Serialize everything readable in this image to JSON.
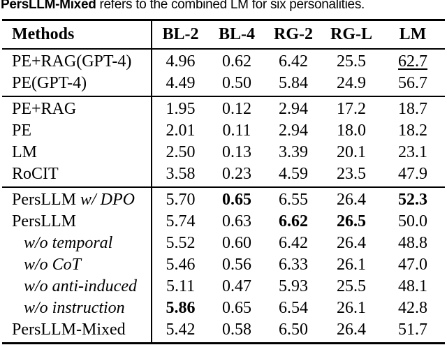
{
  "caption": {
    "bold_part": "PersLLM-Mixed",
    "rest": " refers to the combined LM for six personalities."
  },
  "colors": {
    "text": "#000000",
    "background": "#ffffff"
  },
  "chart_data": {
    "type": "table",
    "title": "PersLLM-Mixed refers to the combined LM for six personalities.",
    "columns": [
      "Methods",
      "BL-2",
      "BL-4",
      "RG-2",
      "RG-L",
      "LM"
    ],
    "sections": [
      {
        "rows": [
          {
            "method": "PE+RAG(GPT-4)",
            "style": "normal",
            "values": [
              "4.96",
              "0.62",
              "6.42",
              "25.5",
              "62.7"
            ],
            "bold": [],
            "underline": [
              4
            ]
          },
          {
            "method": "PE(GPT-4)",
            "style": "normal",
            "values": [
              "4.49",
              "0.50",
              "5.84",
              "24.9",
              "56.7"
            ],
            "bold": [],
            "underline": []
          }
        ]
      },
      {
        "rows": [
          {
            "method": "PE+RAG",
            "style": "normal",
            "values": [
              "1.95",
              "0.12",
              "2.94",
              "17.2",
              "18.7"
            ],
            "bold": [],
            "underline": []
          },
          {
            "method": "PE",
            "style": "normal",
            "values": [
              "2.01",
              "0.11",
              "2.94",
              "18.0",
              "18.2"
            ],
            "bold": [],
            "underline": []
          },
          {
            "method": "LM",
            "style": "normal",
            "values": [
              "2.50",
              "0.13",
              "3.39",
              "20.1",
              "23.1"
            ],
            "bold": [],
            "underline": []
          },
          {
            "method": "RoCIT",
            "style": "normal",
            "values": [
              "3.58",
              "0.23",
              "4.59",
              "23.5",
              "47.9"
            ],
            "bold": [],
            "underline": []
          }
        ]
      },
      {
        "rows": [
          {
            "method": "PersLLM ",
            "method_suffix_italic": "w/ DPO",
            "style": "normal",
            "values": [
              "5.70",
              "0.65",
              "6.55",
              "26.4",
              "52.3"
            ],
            "bold": [
              1,
              4
            ],
            "underline": []
          },
          {
            "method": "PersLLM",
            "style": "normal",
            "values": [
              "5.74",
              "0.63",
              "6.62",
              "26.5",
              "50.0"
            ],
            "bold": [
              2,
              3
            ],
            "underline": []
          },
          {
            "method": "w/o temporal",
            "style": "ablation",
            "values": [
              "5.52",
              "0.60",
              "6.42",
              "26.4",
              "48.8"
            ],
            "bold": [],
            "underline": []
          },
          {
            "method": "w/o CoT",
            "style": "ablation",
            "values": [
              "5.46",
              "0.56",
              "6.33",
              "26.1",
              "47.0"
            ],
            "bold": [],
            "underline": []
          },
          {
            "method": "w/o anti-induced",
            "style": "ablation",
            "values": [
              "5.11",
              "0.47",
              "5.93",
              "25.5",
              "48.1"
            ],
            "bold": [],
            "underline": []
          },
          {
            "method": "w/o instruction",
            "style": "ablation",
            "values": [
              "5.86",
              "0.65",
              "6.54",
              "26.1",
              "42.8"
            ],
            "bold": [
              0
            ],
            "underline": []
          },
          {
            "method": "PersLLM-Mixed",
            "style": "normal",
            "values": [
              "5.42",
              "0.58",
              "6.50",
              "26.4",
              "51.7"
            ],
            "bold": [],
            "underline": []
          }
        ]
      }
    ]
  }
}
